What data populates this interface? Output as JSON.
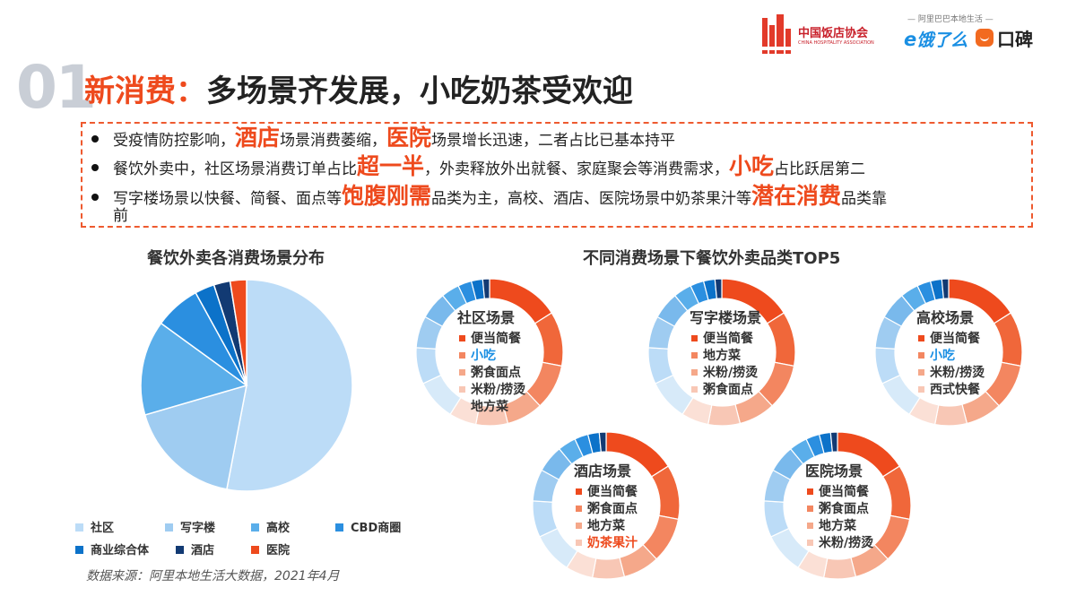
{
  "header": {
    "number": "01",
    "title_prefix": "新消费：",
    "title_rest": "多场景齐发展，小吃奶茶受欢迎",
    "logo_assoc": "中国饭店协会",
    "logo_assoc_en": "CHINA HOSPITALITY ASSOCIATION",
    "logo_tagline": "— 阿里巴巴本地生活 —",
    "logo_eleme": "饿了么",
    "logo_koubei": "口碑"
  },
  "bullets": [
    {
      "parts": [
        {
          "text": "受疫情防控影响，",
          "hl": false
        },
        {
          "text": "酒店",
          "hl": true
        },
        {
          "text": "场景消费萎缩，",
          "hl": false
        },
        {
          "text": "医院",
          "hl": true
        },
        {
          "text": "场景增长迅速，二者占比已基本持平",
          "hl": false
        }
      ]
    },
    {
      "parts": [
        {
          "text": "餐饮外卖中，社区场景消费订单占比",
          "hl": false
        },
        {
          "text": "超一半",
          "hl": true
        },
        {
          "text": "，外卖释放外出就餐、家庭聚会等消费需求，",
          "hl": false
        },
        {
          "text": "小吃",
          "hl": true
        },
        {
          "text": "占比跃居第二",
          "hl": false
        }
      ]
    },
    {
      "parts": [
        {
          "text": "写字楼场景以快餐、简餐、面点等",
          "hl": false
        },
        {
          "text": "饱腹刚需",
          "hl": true
        },
        {
          "text": "品类为主，高校、酒店、医院场景中奶茶果汁等",
          "hl": false
        },
        {
          "text": "潜在消费",
          "hl": true
        },
        {
          "text": "品类靠",
          "hl": false
        }
      ]
    },
    {
      "parts": [
        {
          "text": "前",
          "hl": false
        }
      ]
    }
  ],
  "colors": {
    "accent": "#ee4a1d",
    "blue_light": "#bcdcf7",
    "blue_mid": "#9fccf1",
    "blue": "#5aaeea",
    "blue_strong": "#2b8fe0",
    "blue_deep": "#0c72c9",
    "navy": "#123a73",
    "red": "#ee4a1d"
  },
  "chart_data": [
    {
      "type": "pie",
      "title": "餐饮外卖各消费场景分布",
      "legend_position": "bottom",
      "categories": [
        "社区",
        "写字楼",
        "高校",
        "CBD商圈",
        "商业综合体",
        "酒店",
        "医院"
      ],
      "values": [
        53,
        17.5,
        14.5,
        7,
        3,
        2.5,
        2.5
      ],
      "series_colors": [
        "#bcdcf7",
        "#9fccf1",
        "#5aaeea",
        "#2b8fe0",
        "#0c72c9",
        "#123a73",
        "#ee4a1d"
      ]
    },
    {
      "type": "donut-group",
      "title": "不同消费场景下餐饮外卖品类TOP5",
      "scenes": [
        {
          "name": "社区场景",
          "top": [
            "便当简餐",
            "小吃",
            "粥食面点",
            "米粉/捞烫",
            "地方菜"
          ],
          "highlight": [
            1
          ]
        },
        {
          "name": "写字楼场景",
          "top": [
            "便当简餐",
            "地方菜",
            "米粉/捞烫",
            "粥食面点"
          ],
          "highlight": []
        },
        {
          "name": "高校场景",
          "top": [
            "便当简餐",
            "小吃",
            "米粉/捞烫",
            "西式快餐"
          ],
          "highlight": [
            1
          ]
        },
        {
          "name": "酒店场景",
          "top": [
            "便当简餐",
            "粥食面点",
            "地方菜",
            "奶茶果汁"
          ],
          "highlight": [
            3
          ]
        },
        {
          "name": "医院场景",
          "top": [
            "便当简餐",
            "粥食面点",
            "地方菜",
            "米粉/捞烫"
          ],
          "highlight": []
        }
      ]
    }
  ],
  "source": "数据来源：阿里本地生活大数据，2021年4月"
}
